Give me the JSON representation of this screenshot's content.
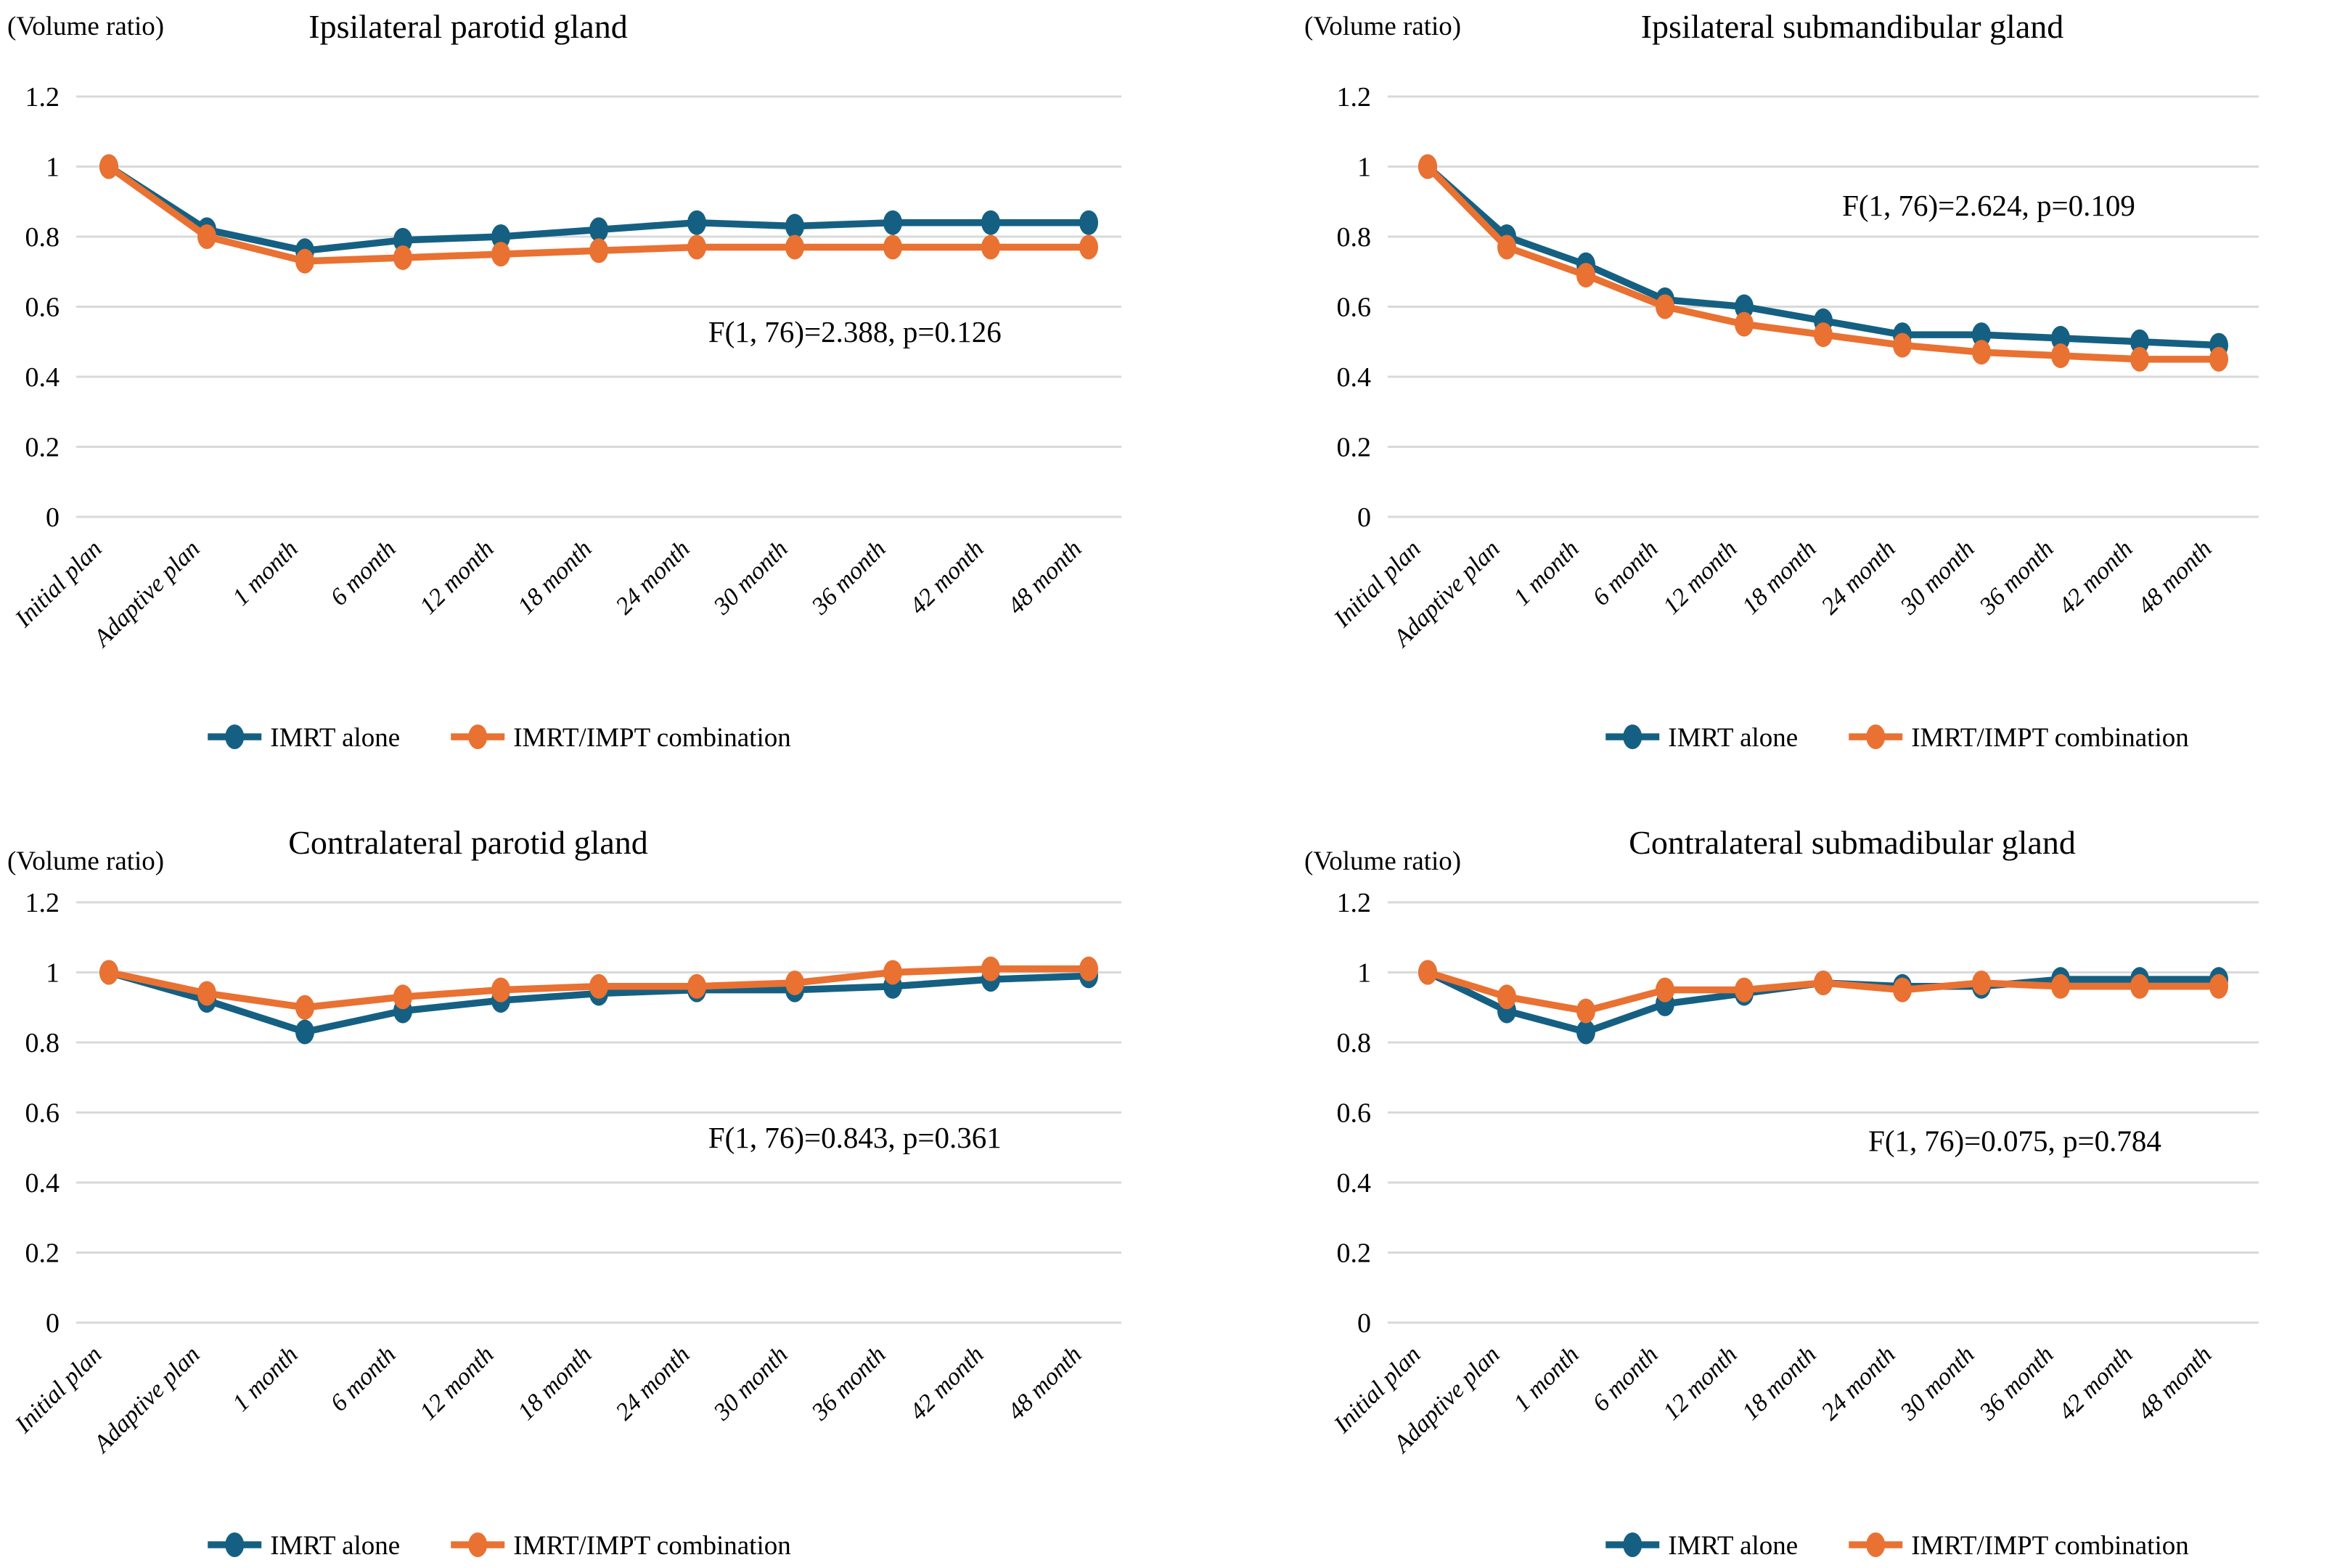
{
  "colors": {
    "series_imrt_alone": "#156082",
    "series_imrt_impt_combination": "#E97132",
    "gridline": "#D9D9D9",
    "text": "#000000",
    "background": "#FFFFFF"
  },
  "y_axis_unit_label": "(Volume ratio)",
  "legend": [
    "IMRT alone",
    "IMRT/IMPT combination"
  ],
  "chart_data": [
    {
      "type": "line",
      "title": "Ipsilateral parotid gland",
      "y_unit_label": "(Volume ratio)",
      "annotation": "F(1, 76)=2.388, p=0.126",
      "categories": [
        "Initial plan",
        "Adaptive plan",
        "1 month",
        "6 month",
        "12 month",
        "18 month",
        "24 month",
        "30 month",
        "36 month",
        "42 month",
        "48 month"
      ],
      "ytick_labels": [
        "1.2",
        "1",
        "0.8",
        "0.6",
        "0.4",
        "0.2",
        "0"
      ],
      "ylim": [
        0,
        1.2
      ],
      "grid": true,
      "legend_position": "bottom",
      "series": [
        {
          "name": "IMRT alone",
          "color": "#156082",
          "values": [
            1.0,
            0.82,
            0.76,
            0.79,
            0.8,
            0.82,
            0.84,
            0.83,
            0.84,
            0.84,
            0.84
          ]
        },
        {
          "name": "IMRT/IMPT combination",
          "color": "#E97132",
          "values": [
            1.0,
            0.8,
            0.73,
            0.74,
            0.75,
            0.76,
            0.77,
            0.77,
            0.77,
            0.77,
            0.77
          ]
        }
      ]
    },
    {
      "type": "line",
      "title": "Ipsilateral submandibular gland",
      "y_unit_label": "(Volume ratio)",
      "annotation": "F(1, 76)=2.624, p=0.109",
      "categories": [
        "Initial plan",
        "Adaptive plan",
        "1 month",
        "6 month",
        "12 month",
        "18 month",
        "24 month",
        "30 month",
        "36 month",
        "42 month",
        "48 month"
      ],
      "ytick_labels": [
        "1.2",
        "1",
        "0.8",
        "0.6",
        "0.4",
        "0.2",
        "0"
      ],
      "ylim": [
        0,
        1.2
      ],
      "grid": true,
      "legend_position": "bottom",
      "series": [
        {
          "name": "IMRT alone",
          "color": "#156082",
          "values": [
            1.0,
            0.8,
            0.72,
            0.62,
            0.6,
            0.56,
            0.52,
            0.52,
            0.51,
            0.5,
            0.49
          ]
        },
        {
          "name": "IMRT/IMPT combination",
          "color": "#E97132",
          "values": [
            1.0,
            0.77,
            0.69,
            0.6,
            0.55,
            0.52,
            0.49,
            0.47,
            0.46,
            0.45,
            0.45
          ]
        }
      ]
    },
    {
      "type": "line",
      "title": "Contralateral parotid gland",
      "y_unit_label": "(Volume ratio)",
      "annotation": "F(1, 76)=0.843, p=0.361",
      "categories": [
        "Initial plan",
        "Adaptive plan",
        "1 month",
        "6 month",
        "12 month",
        "18 month",
        "24 month",
        "30 month",
        "36 month",
        "42 month",
        "48 month"
      ],
      "ytick_labels": [
        "1.2",
        "1",
        "0.8",
        "0.6",
        "0.4",
        "0.2",
        "0"
      ],
      "ylim": [
        0,
        1.2
      ],
      "grid": true,
      "legend_position": "bottom",
      "series": [
        {
          "name": "IMRT alone",
          "color": "#156082",
          "values": [
            1.0,
            0.92,
            0.83,
            0.89,
            0.92,
            0.94,
            0.95,
            0.95,
            0.96,
            0.98,
            0.99
          ]
        },
        {
          "name": "IMRT/IMPT combination",
          "color": "#E97132",
          "values": [
            1.0,
            0.94,
            0.9,
            0.93,
            0.95,
            0.96,
            0.96,
            0.97,
            1.0,
            1.01,
            1.01
          ]
        }
      ]
    },
    {
      "type": "line",
      "title": "Contralateral submadibular gland",
      "y_unit_label": "(Volume ratio)",
      "annotation": "F(1, 76)=0.075, p=0.784",
      "categories": [
        "Initial plan",
        "Adaptive plan",
        "1 month",
        "6 month",
        "12 month",
        "18 month",
        "24 month",
        "30 month",
        "36 month",
        "42 month",
        "48 month"
      ],
      "ytick_labels": [
        "1.2",
        "1",
        "0.8",
        "0.6",
        "0.4",
        "0.2",
        "0"
      ],
      "ylim": [
        0,
        1.2
      ],
      "grid": true,
      "legend_position": "bottom",
      "series": [
        {
          "name": "IMRT alone",
          "color": "#156082",
          "values": [
            1.0,
            0.89,
            0.83,
            0.91,
            0.94,
            0.97,
            0.96,
            0.96,
            0.98,
            0.98,
            0.98
          ]
        },
        {
          "name": "IMRT/IMPT combination",
          "color": "#E97132",
          "values": [
            1.0,
            0.93,
            0.89,
            0.95,
            0.95,
            0.97,
            0.95,
            0.97,
            0.96,
            0.96,
            0.96
          ]
        }
      ]
    }
  ]
}
